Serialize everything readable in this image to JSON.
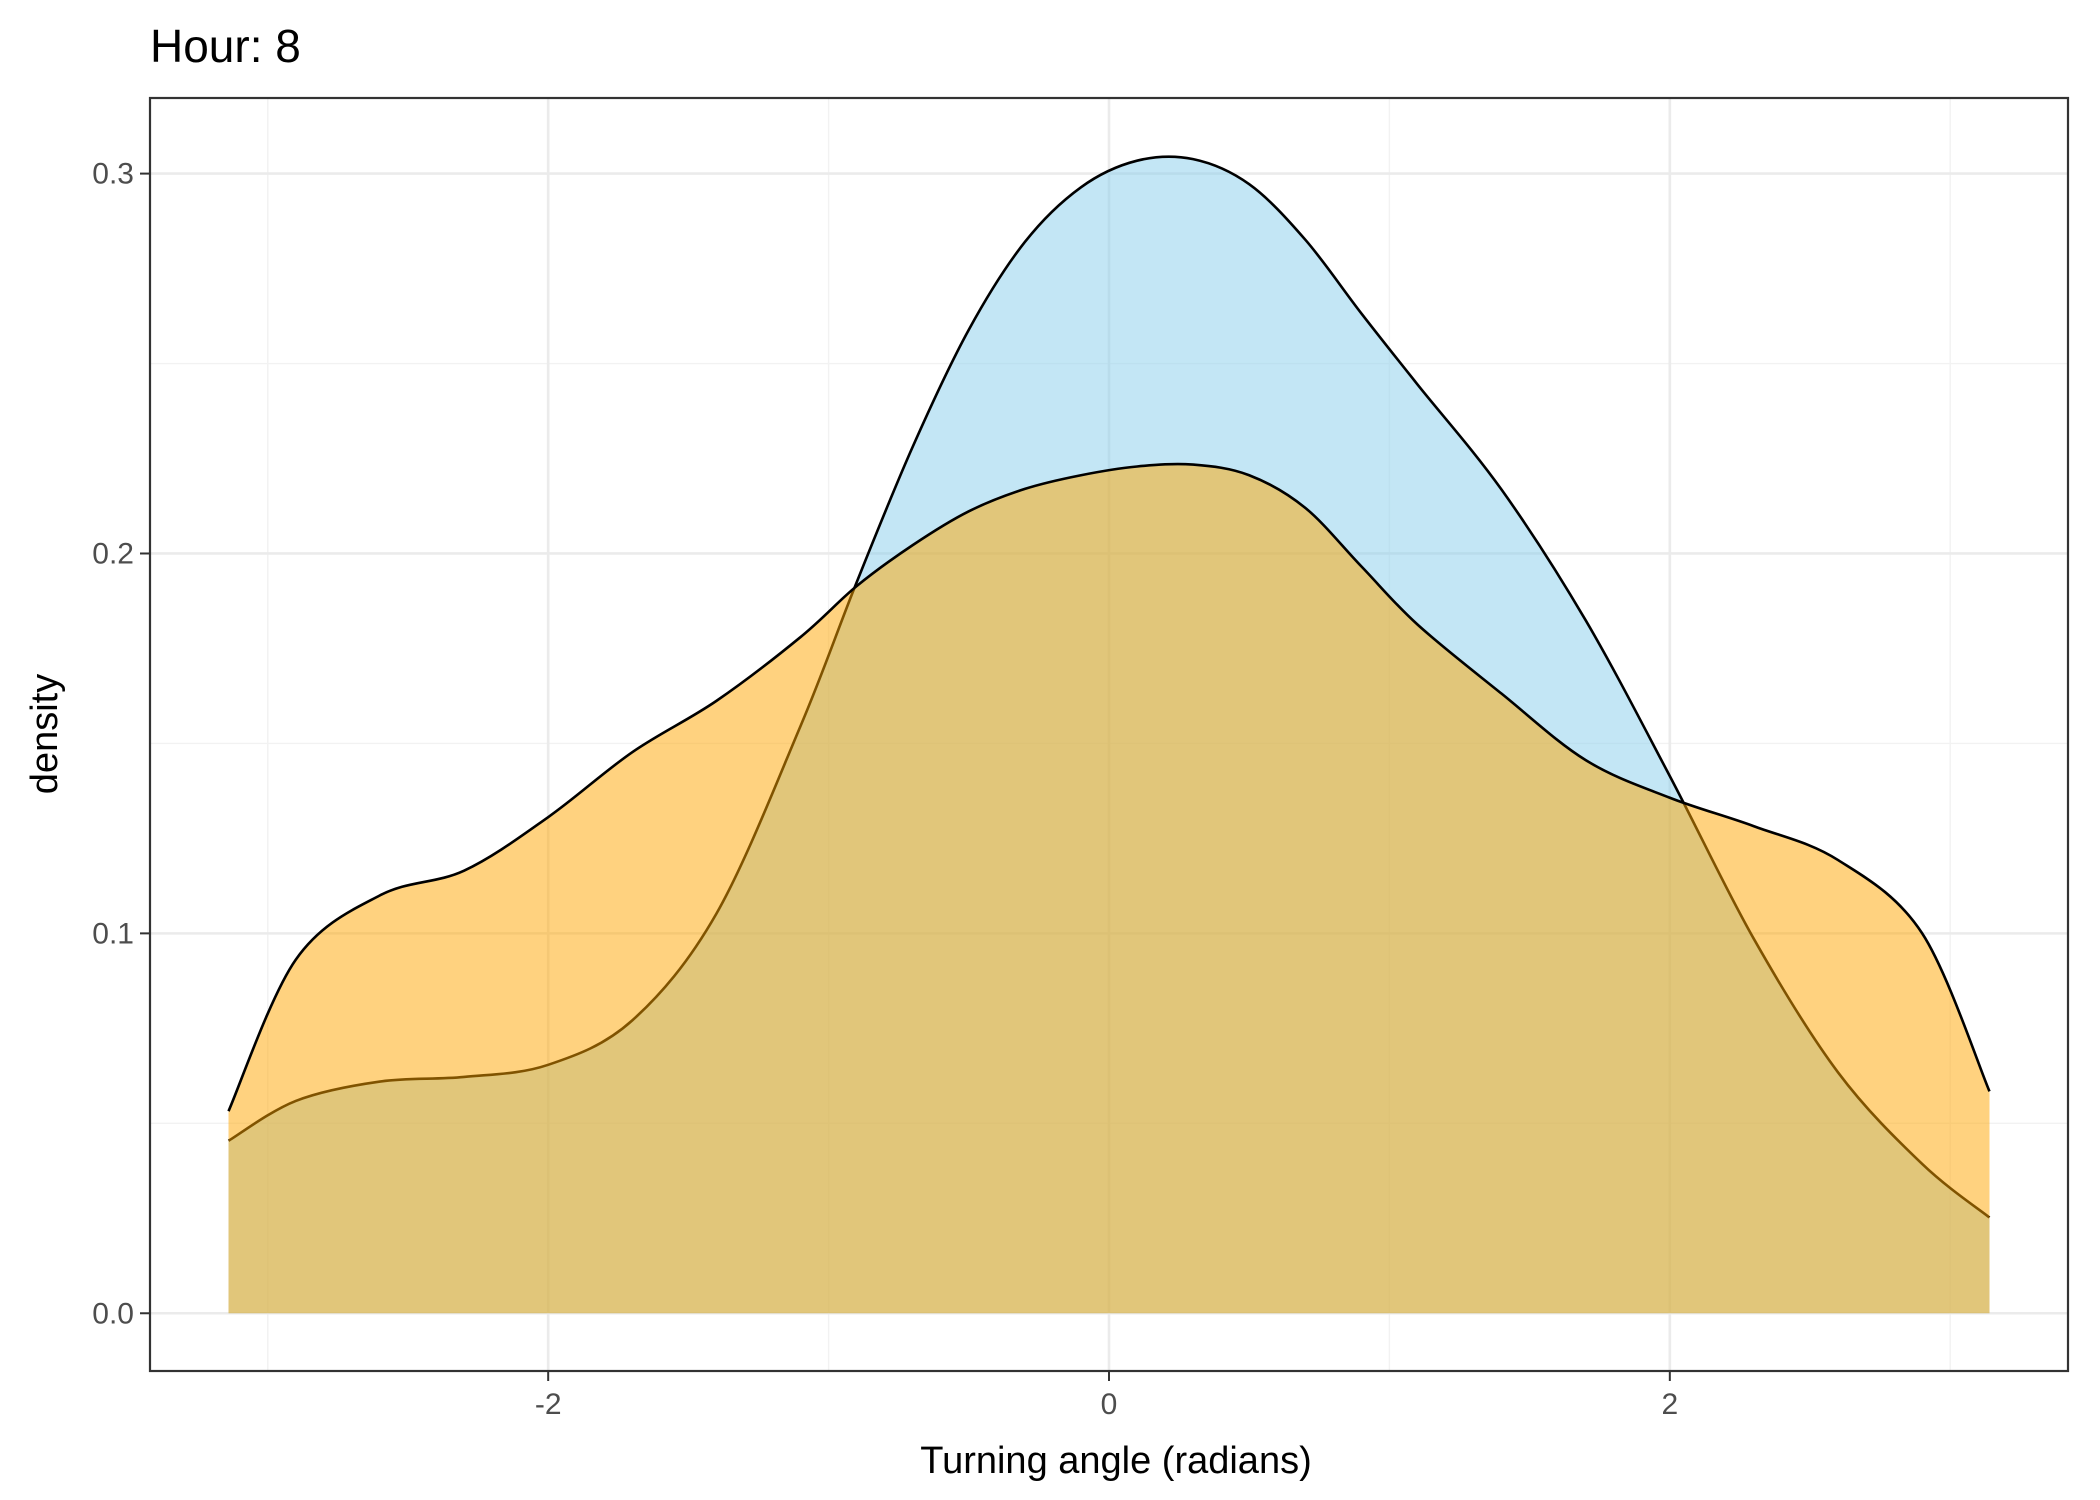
{
  "chart_data": {
    "type": "area",
    "title": "Hour: 8",
    "xlabel": "Turning angle (radians)",
    "ylabel": "density",
    "xlim": [
      -3.42,
      3.42
    ],
    "ylim": [
      -0.0152,
      0.3199
    ],
    "x_ticks": [
      -2,
      0,
      2
    ],
    "x_tick_labels": [
      "-2",
      "0",
      "2"
    ],
    "y_ticks": [
      0.0,
      0.1,
      0.2,
      0.3
    ],
    "y_tick_labels": [
      "0.0",
      "0.1",
      "0.2",
      "0.3"
    ],
    "grid": true,
    "legend": "none",
    "series": [
      {
        "fill": "#87CEEB",
        "fill_opacity": 0.5,
        "stroke": "#000000",
        "x": [
          -3.14,
          -2.9,
          -2.6,
          -2.3,
          -2.0,
          -1.7,
          -1.4,
          -1.1,
          -0.9,
          -0.7,
          -0.5,
          -0.3,
          -0.1,
          0.1,
          0.3,
          0.5,
          0.7,
          0.9,
          1.1,
          1.4,
          1.7,
          2.0,
          2.3,
          2.6,
          2.9,
          3.14
        ],
        "y": [
          0.0454,
          0.0559,
          0.061,
          0.0622,
          0.0654,
          0.0771,
          0.1052,
          0.1546,
          0.1924,
          0.2281,
          0.2589,
          0.282,
          0.2964,
          0.3034,
          0.3038,
          0.2972,
          0.2826,
          0.2632,
          0.2445,
          0.2168,
          0.1824,
          0.1414,
          0.0985,
          0.0634,
          0.0393,
          0.0252
        ]
      },
      {
        "fill": "#FFA500",
        "fill_opacity": 0.5,
        "stroke": "#000000",
        "x": [
          -3.14,
          -2.9,
          -2.6,
          -2.3,
          -2.0,
          -1.7,
          -1.4,
          -1.1,
          -0.9,
          -0.7,
          -0.5,
          -0.3,
          -0.1,
          0.1,
          0.3,
          0.5,
          0.7,
          0.9,
          1.1,
          1.4,
          1.7,
          2.0,
          2.3,
          2.6,
          2.9,
          3.14
        ],
        "y": [
          0.0532,
          0.0931,
          0.11,
          0.1165,
          0.1306,
          0.1477,
          0.1612,
          0.178,
          0.1914,
          0.2022,
          0.2111,
          0.217,
          0.2206,
          0.2229,
          0.2234,
          0.2206,
          0.212,
          0.1966,
          0.1813,
          0.1631,
          0.1456,
          0.1357,
          0.1282,
          0.1193,
          0.1,
          0.0584
        ]
      }
    ]
  }
}
